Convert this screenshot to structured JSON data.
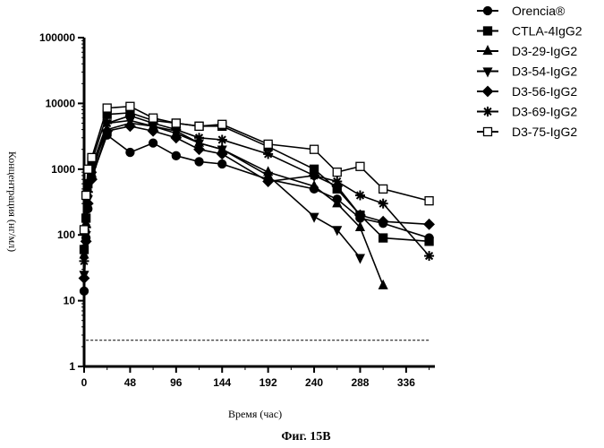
{
  "chart_data": {
    "type": "line",
    "title": "",
    "caption": "Фиг. 15B",
    "xlabel": "Время (час)",
    "ylabel": "Концентрация (нг/мл)",
    "x_scale": "linear",
    "y_scale": "log",
    "xlim": [
      0,
      366
    ],
    "ylim": [
      1,
      100000
    ],
    "x_ticks": [
      "0",
      "48",
      "96",
      "144",
      "192",
      "240",
      "288",
      "336"
    ],
    "y_ticks": [
      "1",
      "10",
      "100",
      "1000",
      "10000",
      "100000"
    ],
    "legend_position": "top-right",
    "reference_line": {
      "style": "dashed",
      "y": 2.5,
      "x_start": 2,
      "x_end": 360
    },
    "series": [
      {
        "name": "Orencia®",
        "marker": "circle-filled",
        "x": [
          0,
          2,
          4,
          8,
          24,
          48,
          72,
          96,
          120,
          144,
          192,
          240,
          264,
          288,
          312,
          360
        ],
        "y": [
          14,
          90,
          250,
          750,
          3300,
          1800,
          2500,
          1600,
          1300,
          1200,
          700,
          500,
          350,
          180,
          150,
          90
        ]
      },
      {
        "name": "CTLA-4IgG2",
        "marker": "square-filled",
        "x": [
          0,
          2,
          4,
          8,
          24,
          48,
          72,
          96,
          120,
          144,
          192,
          240,
          264,
          288,
          312,
          360
        ],
        "y": [
          60,
          180,
          600,
          1300,
          6800,
          7200,
          5500,
          5000,
          4500,
          4500,
          2200,
          1000,
          500,
          200,
          90,
          80
        ]
      },
      {
        "name": "D3-29-IgG2",
        "marker": "triangle-up-filled",
        "x": [
          0,
          2,
          4,
          8,
          24,
          48,
          72,
          96,
          120,
          144,
          192,
          240,
          264,
          288,
          312
        ],
        "y": [
          50,
          150,
          500,
          1000,
          4000,
          5000,
          4500,
          3500,
          2500,
          2000,
          900,
          550,
          300,
          130,
          17
        ]
      },
      {
        "name": "D3-54-IgG2",
        "marker": "triangle-down-filled",
        "x": [
          0,
          2,
          4,
          8,
          24,
          48,
          72,
          96,
          120,
          144,
          192,
          240,
          264,
          288
        ],
        "y": [
          25,
          100,
          350,
          800,
          5000,
          5500,
          4500,
          3800,
          2500,
          2000,
          800,
          190,
          120,
          45
        ]
      },
      {
        "name": "D3-56-IgG2",
        "marker": "diamond-filled",
        "x": [
          0,
          2,
          4,
          8,
          24,
          48,
          72,
          96,
          120,
          144,
          192,
          240,
          264,
          288,
          312,
          360
        ],
        "y": [
          22,
          80,
          300,
          700,
          3800,
          4500,
          3800,
          3000,
          2000,
          1700,
          650,
          800,
          550,
          200,
          160,
          145
        ]
      },
      {
        "name": "D3-69-IgG2",
        "marker": "asterisk",
        "x": [
          0,
          2,
          4,
          8,
          24,
          48,
          72,
          96,
          120,
          144,
          192,
          240,
          264,
          288,
          312,
          360
        ],
        "y": [
          40,
          130,
          450,
          1100,
          5000,
          6500,
          5000,
          4000,
          3000,
          2800,
          1700,
          800,
          650,
          400,
          300,
          48
        ]
      },
      {
        "name": "D3-75-IgG2",
        "marker": "square-open",
        "x": [
          0,
          2,
          4,
          8,
          24,
          48,
          72,
          96,
          120,
          144,
          192,
          240,
          264,
          288,
          312,
          360
        ],
        "y": [
          120,
          400,
          1000,
          1500,
          8500,
          9000,
          6000,
          5000,
          4500,
          4800,
          2400,
          2000,
          900,
          1100,
          500,
          330
        ]
      }
    ]
  }
}
